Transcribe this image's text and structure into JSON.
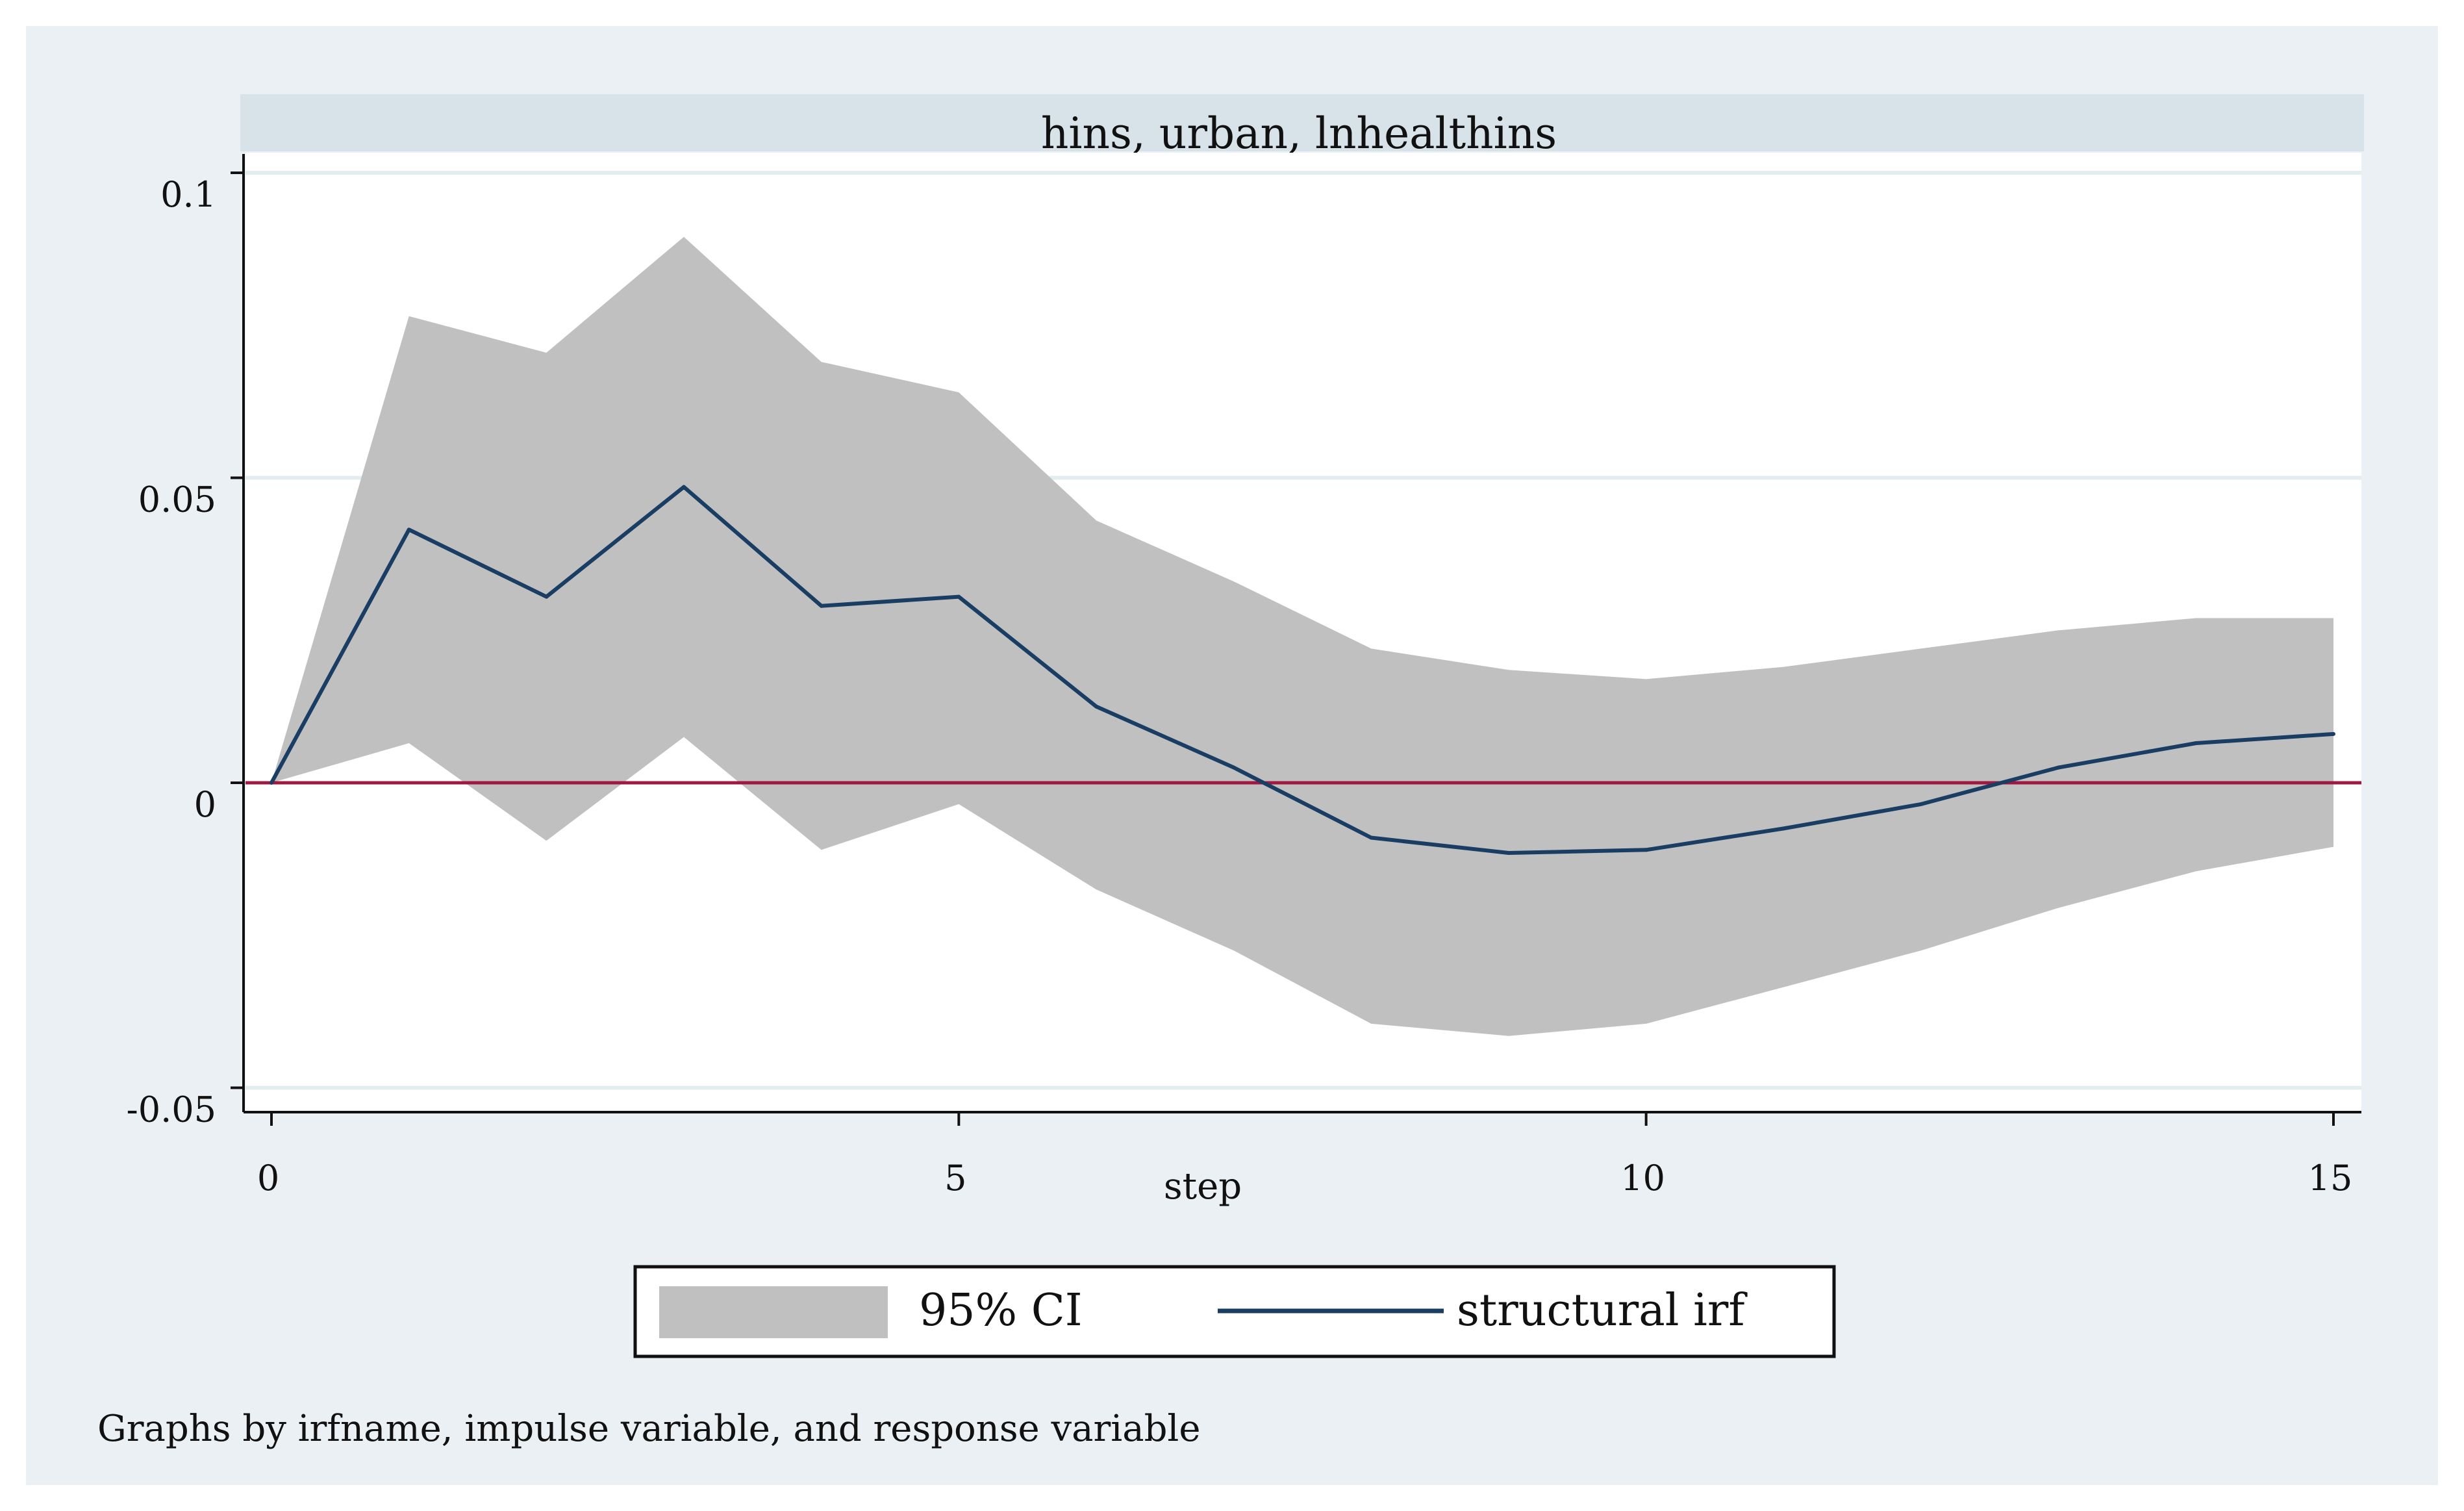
{
  "chart_data": {
    "type": "line",
    "title": "hins, urban, lnhealthins",
    "xlabel": "step",
    "ylabel": "",
    "xlim": [
      0,
      15
    ],
    "ylim": [
      -0.05,
      0.1
    ],
    "x_ticks": [
      0,
      5,
      10,
      15
    ],
    "x_tick_labels": [
      "0",
      "5",
      "10",
      "15"
    ],
    "y_ticks": [
      -0.05,
      0,
      0.05,
      0.1
    ],
    "y_tick_labels": [
      "-0.05",
      "0",
      "0.05",
      "0.1"
    ],
    "grid": true,
    "reference_line": {
      "y": 0,
      "color": "#a01840"
    },
    "x": [
      0,
      1,
      2,
      3,
      4,
      5,
      6,
      7,
      8,
      9,
      10,
      11,
      12,
      13,
      14,
      15
    ],
    "series": [
      {
        "name": "95% CI",
        "kind": "band",
        "upper": [
          0.0,
          0.0765,
          0.0705,
          0.0895,
          0.069,
          0.064,
          0.043,
          0.033,
          0.022,
          0.0185,
          0.017,
          0.019,
          0.022,
          0.025,
          0.027,
          0.027
        ],
        "lower": [
          0.0,
          0.0065,
          -0.0095,
          0.0075,
          -0.011,
          -0.0035,
          -0.0175,
          -0.0275,
          -0.0395,
          -0.0415,
          -0.0395,
          -0.0335,
          -0.0275,
          -0.0205,
          -0.0145,
          -0.0105
        ],
        "color": "#c0c0c0"
      },
      {
        "name": "structural irf",
        "kind": "line",
        "values": [
          0.0,
          0.0415,
          0.0305,
          0.0485,
          0.029,
          0.0305,
          0.0125,
          0.0025,
          -0.009,
          -0.0115,
          -0.011,
          -0.0075,
          -0.0035,
          0.0025,
          0.0065,
          0.008
        ],
        "color": "#1a3d63"
      }
    ],
    "legend": {
      "position": "bottom",
      "entries": [
        "95% CI",
        "structural irf"
      ]
    },
    "note": "Graphs by irfname, impulse variable, and response variable"
  },
  "colors": {
    "outer_background": "#eaf0f3",
    "strip_background": "#d8e3e9",
    "plot_background": "#ffffff",
    "gridline": "#e3ecef",
    "axis": "#111111"
  }
}
